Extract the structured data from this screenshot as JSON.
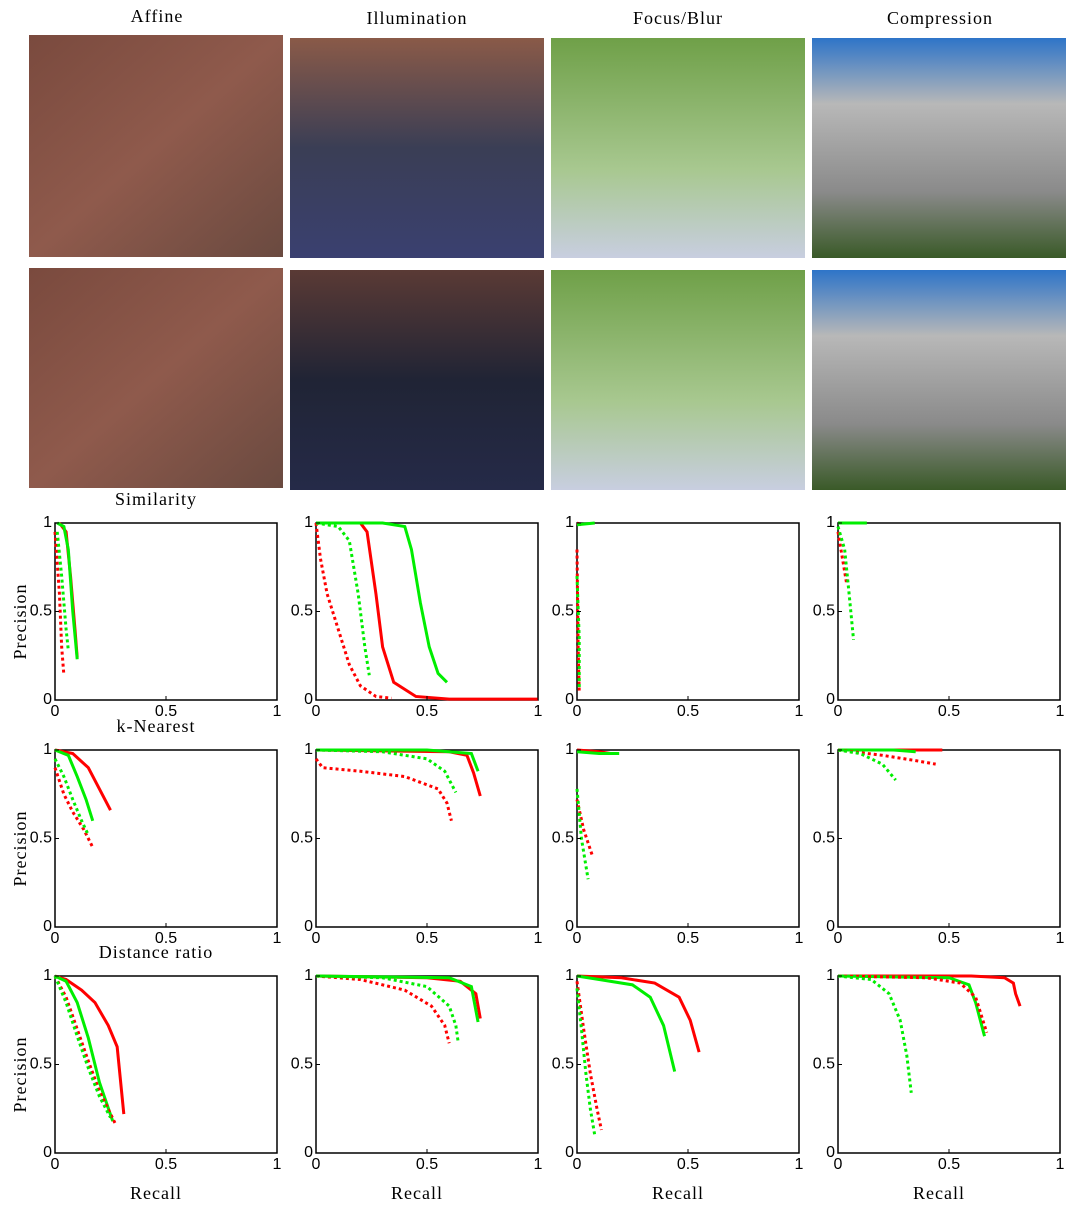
{
  "columns": [
    "Affine",
    "Illumination",
    "Focus/Blur",
    "Compression"
  ],
  "chart_data": [
    {
      "type": "line",
      "title": "Similarity",
      "ylabel": "Precision",
      "xlim": [
        0,
        1
      ],
      "ylim": [
        0,
        1
      ],
      "xticks": [
        0,
        0.5,
        1
      ],
      "yticks": [
        0,
        0.5,
        1
      ],
      "series": [
        {
          "color": "#ff0000",
          "style": "solid",
          "x": [
            0.02,
            0.05,
            0.07,
            0.09,
            0.1
          ],
          "values": [
            1,
            0.95,
            0.7,
            0.4,
            0.24
          ]
        },
        {
          "color": "#00ee00",
          "style": "solid",
          "x": [
            0.01,
            0.04,
            0.06,
            0.08,
            0.1
          ],
          "values": [
            1,
            0.98,
            0.85,
            0.5,
            0.23
          ]
        },
        {
          "color": "#ff0000",
          "style": "dotted",
          "x": [
            0,
            0.02,
            0.03,
            0.04
          ],
          "values": [
            0.95,
            0.6,
            0.3,
            0.14
          ]
        },
        {
          "color": "#00ee00",
          "style": "dotted",
          "x": [
            0.01,
            0.03,
            0.05,
            0.06
          ],
          "values": [
            0.95,
            0.7,
            0.4,
            0.28
          ]
        }
      ]
    },
    {
      "type": "line",
      "xlim": [
        0,
        1
      ],
      "ylim": [
        0,
        1
      ],
      "xticks": [
        0,
        0.5,
        1
      ],
      "yticks": [
        0,
        0.5,
        1
      ],
      "series": [
        {
          "color": "#ff0000",
          "style": "solid",
          "x": [
            0,
            0.2,
            0.23,
            0.27,
            0.3,
            0.35,
            0.45,
            0.6,
            1
          ],
          "values": [
            1,
            1,
            0.95,
            0.6,
            0.3,
            0.1,
            0.02,
            0.005,
            0.005
          ]
        },
        {
          "color": "#00ee00",
          "style": "solid",
          "x": [
            0,
            0.3,
            0.4,
            0.43,
            0.47,
            0.51,
            0.55,
            0.59
          ],
          "values": [
            1,
            1,
            0.98,
            0.85,
            0.55,
            0.3,
            0.15,
            0.1
          ]
        },
        {
          "color": "#ff0000",
          "style": "dotted",
          "x": [
            0,
            0.02,
            0.05,
            0.1,
            0.15,
            0.2,
            0.27,
            0.34
          ],
          "values": [
            1,
            0.8,
            0.6,
            0.4,
            0.2,
            0.08,
            0.02,
            0.01
          ]
        },
        {
          "color": "#00ee00",
          "style": "dotted",
          "x": [
            0,
            0.1,
            0.15,
            0.19,
            0.22,
            0.24
          ],
          "values": [
            1,
            0.98,
            0.9,
            0.6,
            0.3,
            0.14
          ]
        }
      ]
    },
    {
      "type": "line",
      "xlim": [
        0,
        1
      ],
      "ylim": [
        0,
        1
      ],
      "xticks": [
        0,
        0.5,
        1
      ],
      "yticks": [
        0,
        0.5,
        1
      ],
      "series": [
        {
          "color": "#ff0000",
          "style": "solid",
          "x": [
            0,
            0.02
          ],
          "values": [
            1,
            0.99
          ]
        },
        {
          "color": "#00ee00",
          "style": "solid",
          "x": [
            0,
            0.08
          ],
          "values": [
            0.99,
            1
          ]
        },
        {
          "color": "#ff0000",
          "style": "dotted",
          "x": [
            0,
            0.005,
            0.01
          ],
          "values": [
            0.85,
            0.3,
            0.05
          ]
        },
        {
          "color": "#00ee00",
          "style": "dotted",
          "x": [
            0,
            0.01,
            0.01
          ],
          "values": [
            0.7,
            0.35,
            0.07
          ]
        }
      ]
    },
    {
      "type": "line",
      "xlim": [
        0,
        1
      ],
      "ylim": [
        0,
        1
      ],
      "xticks": [
        0,
        0.5,
        1
      ],
      "yticks": [
        0,
        0.5,
        1
      ],
      "series": [
        {
          "color": "#ff0000",
          "style": "solid",
          "x": [
            0,
            0.06
          ],
          "values": [
            1,
            1
          ]
        },
        {
          "color": "#00ee00",
          "style": "solid",
          "x": [
            0,
            0.13
          ],
          "values": [
            1,
            1
          ]
        },
        {
          "color": "#ff0000",
          "style": "dotted",
          "x": [
            0,
            0.02,
            0.04
          ],
          "values": [
            0.95,
            0.8,
            0.65
          ]
        },
        {
          "color": "#00ee00",
          "style": "dotted",
          "x": [
            0,
            0.03,
            0.05,
            0.07
          ],
          "values": [
            0.98,
            0.85,
            0.6,
            0.34
          ]
        }
      ]
    },
    {
      "type": "line",
      "title": "k-Nearest",
      "ylabel": "Precision",
      "xlim": [
        0,
        1
      ],
      "ylim": [
        0,
        1
      ],
      "xticks": [
        0,
        0.5,
        1
      ],
      "yticks": [
        0,
        0.5,
        1
      ],
      "series": [
        {
          "color": "#ff0000",
          "style": "solid",
          "x": [
            0,
            0.08,
            0.15,
            0.2,
            0.25
          ],
          "values": [
            1,
            0.98,
            0.9,
            0.78,
            0.66
          ]
        },
        {
          "color": "#00ee00",
          "style": "solid",
          "x": [
            0,
            0.06,
            0.1,
            0.14,
            0.17
          ],
          "values": [
            1,
            0.97,
            0.85,
            0.72,
            0.6
          ]
        },
        {
          "color": "#ff0000",
          "style": "dotted",
          "x": [
            0,
            0.04,
            0.08,
            0.13,
            0.17
          ],
          "values": [
            0.9,
            0.75,
            0.65,
            0.55,
            0.45
          ]
        },
        {
          "color": "#00ee00",
          "style": "dotted",
          "x": [
            0,
            0.04,
            0.08,
            0.12,
            0.15
          ],
          "values": [
            0.95,
            0.85,
            0.72,
            0.6,
            0.52
          ]
        }
      ]
    },
    {
      "type": "line",
      "xlim": [
        0,
        1
      ],
      "ylim": [
        0,
        1
      ],
      "xticks": [
        0,
        0.5,
        1
      ],
      "yticks": [
        0,
        0.5,
        1
      ],
      "series": [
        {
          "color": "#ff0000",
          "style": "solid",
          "x": [
            0,
            0.6,
            0.68,
            0.71,
            0.74
          ],
          "values": [
            1,
            0.99,
            0.97,
            0.87,
            0.74
          ]
        },
        {
          "color": "#00ee00",
          "style": "solid",
          "x": [
            0,
            0.5,
            0.7,
            0.73
          ],
          "values": [
            1,
            1,
            0.98,
            0.88
          ]
        },
        {
          "color": "#ff0000",
          "style": "dotted",
          "x": [
            0,
            0.03,
            0.2,
            0.4,
            0.55,
            0.59,
            0.61
          ],
          "values": [
            0.95,
            0.9,
            0.88,
            0.85,
            0.78,
            0.7,
            0.6
          ]
        },
        {
          "color": "#00ee00",
          "style": "dotted",
          "x": [
            0,
            0.3,
            0.5,
            0.58,
            0.63
          ],
          "values": [
            1,
            0.99,
            0.95,
            0.88,
            0.76
          ]
        }
      ]
    },
    {
      "type": "line",
      "xlim": [
        0,
        1
      ],
      "ylim": [
        0,
        1
      ],
      "xticks": [
        0,
        0.5,
        1
      ],
      "yticks": [
        0,
        0.5,
        1
      ],
      "series": [
        {
          "color": "#ff0000",
          "style": "solid",
          "x": [
            0,
            0.1,
            0.15
          ],
          "values": [
            1,
            0.99,
            0.98
          ]
        },
        {
          "color": "#00ee00",
          "style": "solid",
          "x": [
            0,
            0.1,
            0.19
          ],
          "values": [
            0.99,
            0.98,
            0.98
          ]
        },
        {
          "color": "#ff0000",
          "style": "dotted",
          "x": [
            0,
            0.03,
            0.07
          ],
          "values": [
            0.72,
            0.55,
            0.4
          ]
        },
        {
          "color": "#00ee00",
          "style": "dotted",
          "x": [
            0,
            0.02,
            0.05
          ],
          "values": [
            0.78,
            0.5,
            0.27
          ]
        }
      ]
    },
    {
      "type": "line",
      "xlim": [
        0,
        1
      ],
      "ylim": [
        0,
        1
      ],
      "xticks": [
        0,
        0.5,
        1
      ],
      "yticks": [
        0,
        0.5,
        1
      ],
      "series": [
        {
          "color": "#ff0000",
          "style": "solid",
          "x": [
            0,
            0.3,
            0.47
          ],
          "values": [
            1,
            1,
            1
          ]
        },
        {
          "color": "#00ee00",
          "style": "solid",
          "x": [
            0,
            0.25,
            0.35
          ],
          "values": [
            1,
            1,
            0.99
          ]
        },
        {
          "color": "#ff0000",
          "style": "dotted",
          "x": [
            0,
            0.2,
            0.35,
            0.44
          ],
          "values": [
            1,
            0.97,
            0.94,
            0.92
          ]
        },
        {
          "color": "#00ee00",
          "style": "dotted",
          "x": [
            0,
            0.1,
            0.2,
            0.26
          ],
          "values": [
            1,
            0.98,
            0.92,
            0.83
          ]
        }
      ]
    },
    {
      "type": "line",
      "title": "Distance ratio",
      "ylabel": "Precision",
      "xlabel": "Recall",
      "xlim": [
        0,
        1
      ],
      "ylim": [
        0,
        1
      ],
      "xticks": [
        0,
        0.5,
        1
      ],
      "yticks": [
        0,
        0.5,
        1
      ],
      "series": [
        {
          "color": "#ff0000",
          "style": "solid",
          "x": [
            0,
            0.05,
            0.12,
            0.18,
            0.24,
            0.28,
            0.31
          ],
          "values": [
            1,
            0.98,
            0.92,
            0.85,
            0.72,
            0.6,
            0.22
          ]
        },
        {
          "color": "#00ee00",
          "style": "solid",
          "x": [
            0,
            0.05,
            0.1,
            0.15,
            0.2,
            0.26
          ],
          "values": [
            1,
            0.97,
            0.85,
            0.65,
            0.4,
            0.18
          ]
        },
        {
          "color": "#ff0000",
          "style": "dotted",
          "x": [
            0,
            0.05,
            0.1,
            0.15,
            0.2,
            0.27
          ],
          "values": [
            1,
            0.88,
            0.7,
            0.52,
            0.35,
            0.17
          ]
        },
        {
          "color": "#00ee00",
          "style": "dotted",
          "x": [
            0,
            0.05,
            0.1,
            0.15,
            0.2,
            0.25
          ],
          "values": [
            1,
            0.85,
            0.66,
            0.48,
            0.32,
            0.2
          ]
        }
      ]
    },
    {
      "type": "line",
      "xlabel": "Recall",
      "xlim": [
        0,
        1
      ],
      "ylim": [
        0,
        1
      ],
      "xticks": [
        0,
        0.5,
        1
      ],
      "yticks": [
        0,
        0.5,
        1
      ],
      "series": [
        {
          "color": "#ff0000",
          "style": "solid",
          "x": [
            0,
            0.5,
            0.65,
            0.72,
            0.74
          ],
          "values": [
            1,
            0.99,
            0.97,
            0.9,
            0.76
          ]
        },
        {
          "color": "#00ee00",
          "style": "solid",
          "x": [
            0,
            0.6,
            0.7,
            0.73
          ],
          "values": [
            1,
            0.99,
            0.94,
            0.74
          ]
        },
        {
          "color": "#ff0000",
          "style": "dotted",
          "x": [
            0,
            0.2,
            0.4,
            0.52,
            0.58,
            0.6
          ],
          "values": [
            1,
            0.98,
            0.92,
            0.83,
            0.72,
            0.62
          ]
        },
        {
          "color": "#00ee00",
          "style": "dotted",
          "x": [
            0,
            0.3,
            0.5,
            0.6,
            0.63,
            0.64
          ],
          "values": [
            1,
            0.99,
            0.94,
            0.83,
            0.72,
            0.63
          ]
        }
      ]
    },
    {
      "type": "line",
      "xlabel": "Recall",
      "xlim": [
        0,
        1
      ],
      "ylim": [
        0,
        1
      ],
      "xticks": [
        0,
        0.5,
        1
      ],
      "yticks": [
        0,
        0.5,
        1
      ],
      "series": [
        {
          "color": "#ff0000",
          "style": "solid",
          "x": [
            0,
            0.2,
            0.35,
            0.46,
            0.51,
            0.55
          ],
          "values": [
            1,
            0.99,
            0.96,
            0.88,
            0.75,
            0.57
          ]
        },
        {
          "color": "#00ee00",
          "style": "solid",
          "x": [
            0,
            0.1,
            0.25,
            0.33,
            0.39,
            0.44
          ],
          "values": [
            1,
            0.98,
            0.95,
            0.88,
            0.72,
            0.46
          ]
        },
        {
          "color": "#ff0000",
          "style": "dotted",
          "x": [
            0,
            0.03,
            0.06,
            0.09,
            0.11
          ],
          "values": [
            0.97,
            0.7,
            0.45,
            0.25,
            0.13
          ]
        },
        {
          "color": "#00ee00",
          "style": "dotted",
          "x": [
            0,
            0.02,
            0.04,
            0.06,
            0.08
          ],
          "values": [
            0.93,
            0.7,
            0.45,
            0.25,
            0.1
          ]
        }
      ]
    },
    {
      "type": "line",
      "xlabel": "Recall",
      "xlim": [
        0,
        1
      ],
      "ylim": [
        0,
        1
      ],
      "xticks": [
        0,
        0.5,
        1
      ],
      "yticks": [
        0,
        0.5,
        1
      ],
      "series": [
        {
          "color": "#ff0000",
          "style": "solid",
          "x": [
            0,
            0.6,
            0.75,
            0.79,
            0.8,
            0.82
          ],
          "values": [
            1,
            1,
            0.99,
            0.96,
            0.9,
            0.83
          ]
        },
        {
          "color": "#00ee00",
          "style": "solid",
          "x": [
            0,
            0.5,
            0.59,
            0.62,
            0.66
          ],
          "values": [
            1,
            0.99,
            0.95,
            0.85,
            0.66
          ]
        },
        {
          "color": "#ff0000",
          "style": "dotted",
          "x": [
            0,
            0.4,
            0.55,
            0.62,
            0.67
          ],
          "values": [
            1,
            0.99,
            0.96,
            0.88,
            0.68
          ]
        },
        {
          "color": "#00ee00",
          "style": "dotted",
          "x": [
            0,
            0.15,
            0.23,
            0.28,
            0.31,
            0.33
          ],
          "values": [
            1,
            0.98,
            0.9,
            0.75,
            0.55,
            0.34
          ]
        }
      ]
    }
  ]
}
